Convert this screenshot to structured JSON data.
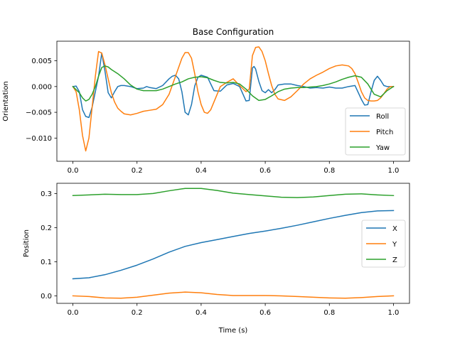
{
  "title": "Base Configuration",
  "colors": {
    "roll": "#1f77b4",
    "pitch": "#ff7f0e",
    "yaw": "#2ca02c"
  },
  "chart_data": [
    {
      "type": "line",
      "ylabel": "Orientation",
      "xlabel": "",
      "xlim": [
        -0.05,
        1.05
      ],
      "ylim": [
        -0.0145,
        0.0088
      ],
      "xticks": [
        0.0,
        0.2,
        0.4,
        0.6,
        0.8,
        1.0
      ],
      "xtick_labels": [
        "0.0",
        "0.2",
        "0.4",
        "0.6",
        "0.8",
        "1.0"
      ],
      "yticks": [
        -0.01,
        -0.005,
        0.0,
        0.005
      ],
      "ytick_labels": [
        "−0.010",
        "−0.005",
        "0.000",
        "0.005"
      ],
      "legend_loc": "lower right",
      "grid": false,
      "series": [
        {
          "name": "Roll",
          "color": "#1f77b4",
          "x": [
            0.0,
            0.01,
            0.02,
            0.03,
            0.04,
            0.05,
            0.06,
            0.07,
            0.08,
            0.09,
            0.1,
            0.11,
            0.12,
            0.13,
            0.14,
            0.15,
            0.16,
            0.18,
            0.2,
            0.22,
            0.23,
            0.24,
            0.26,
            0.28,
            0.3,
            0.31,
            0.32,
            0.33,
            0.34,
            0.35,
            0.36,
            0.37,
            0.38,
            0.39,
            0.4,
            0.42,
            0.44,
            0.46,
            0.48,
            0.5,
            0.52,
            0.54,
            0.55,
            0.56,
            0.565,
            0.57,
            0.58,
            0.59,
            0.6,
            0.61,
            0.62,
            0.63,
            0.64,
            0.66,
            0.68,
            0.7,
            0.72,
            0.74,
            0.76,
            0.78,
            0.8,
            0.82,
            0.84,
            0.86,
            0.88,
            0.9,
            0.91,
            0.92,
            0.93,
            0.94,
            0.95,
            0.96,
            0.97,
            0.98,
            0.99,
            1.0
          ],
          "y": [
            0.0,
            0.0001,
            -0.001,
            -0.0045,
            -0.0058,
            -0.006,
            -0.004,
            -0.001,
            0.002,
            0.0065,
            0.003,
            -0.0012,
            -0.0022,
            -0.001,
            0.0,
            0.0002,
            0.0002,
            0.0,
            -0.0004,
            -0.0003,
            0.0,
            -0.0002,
            -0.0004,
            0.0002,
            0.0015,
            0.002,
            0.0022,
            0.0015,
            -0.001,
            -0.005,
            -0.0055,
            -0.0035,
            0.0001,
            0.0018,
            0.0022,
            0.0018,
            -0.0008,
            -0.0009,
            0.0003,
            0.0006,
            0.0,
            -0.0028,
            -0.0027,
            0.0036,
            0.0039,
            0.0034,
            0.001,
            -0.0008,
            -0.0012,
            -0.0006,
            -0.0012,
            -0.0006,
            0.0003,
            0.0005,
            0.0005,
            0.0002,
            0.0,
            -0.0003,
            -0.0002,
            -0.0003,
            -0.0001,
            -0.0003,
            -0.0003,
            0.0,
            0.0002,
            -0.0025,
            -0.0036,
            -0.0035,
            -0.001,
            0.0012,
            0.002,
            0.0012,
            0.0002,
            0.0,
            0.0,
            0.0
          ]
        },
        {
          "name": "Pitch",
          "color": "#ff7f0e",
          "x": [
            0.0,
            0.01,
            0.02,
            0.03,
            0.04,
            0.05,
            0.06,
            0.07,
            0.08,
            0.09,
            0.1,
            0.11,
            0.12,
            0.13,
            0.14,
            0.15,
            0.16,
            0.18,
            0.2,
            0.22,
            0.24,
            0.26,
            0.28,
            0.3,
            0.32,
            0.34,
            0.35,
            0.36,
            0.37,
            0.38,
            0.39,
            0.4,
            0.41,
            0.42,
            0.43,
            0.44,
            0.45,
            0.46,
            0.48,
            0.5,
            0.52,
            0.54,
            0.55,
            0.56,
            0.57,
            0.58,
            0.59,
            0.6,
            0.61,
            0.62,
            0.63,
            0.64,
            0.66,
            0.68,
            0.7,
            0.72,
            0.74,
            0.76,
            0.78,
            0.8,
            0.82,
            0.84,
            0.86,
            0.87,
            0.88,
            0.89,
            0.9,
            0.91,
            0.92,
            0.93,
            0.94,
            0.95,
            0.96,
            0.97,
            0.98,
            0.99,
            1.0
          ],
          "y": [
            0.0,
            -0.001,
            -0.0045,
            -0.0095,
            -0.0125,
            -0.01,
            -0.004,
            0.002,
            0.0068,
            0.0065,
            0.0042,
            0.0015,
            -0.0012,
            -0.003,
            -0.0042,
            -0.0048,
            -0.0053,
            -0.0055,
            -0.0052,
            -0.0048,
            -0.0046,
            -0.0044,
            -0.0035,
            -0.0015,
            0.002,
            0.0055,
            0.0066,
            0.0066,
            0.0055,
            0.0025,
            -0.001,
            -0.0035,
            -0.005,
            -0.0052,
            -0.0045,
            -0.003,
            -0.0015,
            0.0,
            0.0008,
            0.0015,
            0.0002,
            -0.001,
            -0.0005,
            0.006,
            0.0076,
            0.0077,
            0.0068,
            0.005,
            0.0025,
            0.0002,
            -0.0015,
            -0.0024,
            -0.0027,
            -0.002,
            -0.0008,
            0.0005,
            0.0015,
            0.0022,
            0.0028,
            0.0035,
            0.004,
            0.0042,
            0.004,
            0.0035,
            0.0025,
            0.0008,
            -0.001,
            -0.0022,
            -0.0027,
            -0.0028,
            -0.0028,
            -0.0027,
            -0.0022,
            -0.0014,
            -0.0005,
            0.0,
            0.0
          ]
        },
        {
          "name": "Yaw",
          "color": "#2ca02c",
          "x": [
            0.0,
            0.02,
            0.03,
            0.04,
            0.05,
            0.06,
            0.07,
            0.08,
            0.09,
            0.1,
            0.11,
            0.12,
            0.14,
            0.16,
            0.18,
            0.2,
            0.22,
            0.24,
            0.26,
            0.28,
            0.3,
            0.32,
            0.34,
            0.36,
            0.38,
            0.4,
            0.42,
            0.44,
            0.46,
            0.48,
            0.5,
            0.52,
            0.54,
            0.56,
            0.58,
            0.6,
            0.62,
            0.64,
            0.66,
            0.68,
            0.7,
            0.72,
            0.74,
            0.76,
            0.78,
            0.8,
            0.82,
            0.84,
            0.86,
            0.88,
            0.9,
            0.92,
            0.93,
            0.94,
            0.96,
            0.98,
            1.0
          ],
          "y": [
            0.0,
            -0.0012,
            -0.0022,
            -0.0028,
            -0.0025,
            -0.0015,
            0.0,
            0.002,
            0.0037,
            0.004,
            0.0038,
            0.0033,
            0.0025,
            0.0015,
            0.0003,
            -0.0005,
            -0.0008,
            -0.0008,
            -0.0008,
            -0.0005,
            0.0,
            0.0005,
            0.0009,
            0.0015,
            0.0018,
            0.0019,
            0.0017,
            0.0012,
            0.0008,
            0.0007,
            0.0008,
            0.0005,
            -0.0005,
            -0.0018,
            -0.0027,
            -0.0025,
            -0.0018,
            -0.001,
            -0.0005,
            -0.0003,
            -0.0002,
            -0.0002,
            -0.0001,
            0.0,
            0.0002,
            0.0005,
            0.0009,
            0.0014,
            0.0018,
            0.0021,
            0.0018,
            0.0005,
            -0.0005,
            -0.0015,
            -0.002,
            -0.0008,
            0.0
          ]
        }
      ]
    },
    {
      "type": "line",
      "ylabel": "Position",
      "xlabel": "Time (s)",
      "xlim": [
        -0.05,
        1.05
      ],
      "ylim": [
        -0.022,
        0.33
      ],
      "xticks": [
        0.0,
        0.2,
        0.4,
        0.6,
        0.8,
        1.0
      ],
      "xtick_labels": [
        "0.0",
        "0.2",
        "0.4",
        "0.6",
        "0.8",
        "1.0"
      ],
      "yticks": [
        0.0,
        0.1,
        0.2,
        0.3
      ],
      "ytick_labels": [
        "0.0",
        "0.1",
        "0.2",
        "0.3"
      ],
      "legend_loc": "center right",
      "grid": false,
      "series": [
        {
          "name": "X",
          "color": "#1f77b4",
          "x": [
            0.0,
            0.05,
            0.1,
            0.15,
            0.2,
            0.25,
            0.3,
            0.35,
            0.4,
            0.45,
            0.5,
            0.55,
            0.6,
            0.65,
            0.7,
            0.75,
            0.8,
            0.85,
            0.9,
            0.95,
            1.0
          ],
          "y": [
            0.05,
            0.053,
            0.062,
            0.075,
            0.09,
            0.108,
            0.128,
            0.145,
            0.156,
            0.165,
            0.174,
            0.183,
            0.19,
            0.198,
            0.207,
            0.217,
            0.227,
            0.236,
            0.244,
            0.249,
            0.25
          ]
        },
        {
          "name": "Y",
          "color": "#ff7f0e",
          "x": [
            0.0,
            0.05,
            0.1,
            0.15,
            0.2,
            0.25,
            0.3,
            0.35,
            0.4,
            0.45,
            0.5,
            0.55,
            0.6,
            0.65,
            0.7,
            0.75,
            0.8,
            0.85,
            0.9,
            0.95,
            1.0
          ],
          "y": [
            0.0,
            -0.002,
            -0.006,
            -0.007,
            -0.004,
            0.002,
            0.008,
            0.011,
            0.009,
            0.004,
            0.001,
            0.001,
            0.001,
            0.0,
            -0.002,
            -0.004,
            -0.006,
            -0.007,
            -0.005,
            -0.002,
            0.0
          ]
        },
        {
          "name": "Z",
          "color": "#2ca02c",
          "x": [
            0.0,
            0.05,
            0.1,
            0.15,
            0.2,
            0.25,
            0.3,
            0.35,
            0.4,
            0.45,
            0.5,
            0.55,
            0.6,
            0.65,
            0.7,
            0.75,
            0.8,
            0.85,
            0.9,
            0.95,
            1.0
          ],
          "y": [
            0.294,
            0.296,
            0.298,
            0.297,
            0.297,
            0.3,
            0.308,
            0.315,
            0.315,
            0.309,
            0.301,
            0.297,
            0.293,
            0.289,
            0.288,
            0.29,
            0.294,
            0.298,
            0.299,
            0.296,
            0.294
          ]
        }
      ]
    }
  ]
}
